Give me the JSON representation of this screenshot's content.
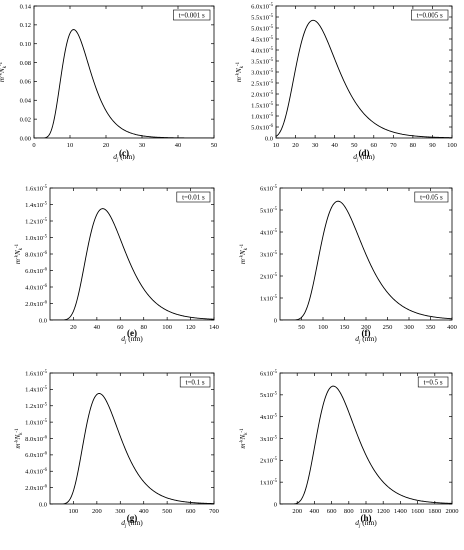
{
  "chart_data": [
    {
      "type": "line",
      "subfigure_label": "(c)",
      "legend": "t=0.001 s",
      "ylabel": "m^(-k)N_k^(-1)",
      "xlabel": "d_j (nm)",
      "xlim": [
        0,
        50
      ],
      "ylim": [
        0,
        0.14
      ],
      "xticks": [
        "0",
        "10",
        "20",
        "30",
        "40",
        "50"
      ],
      "yticks": [
        "0.00",
        "0.02",
        "0.04",
        "0.06",
        "0.08",
        "0.10",
        "0.12",
        "0.14"
      ],
      "peak": {
        "x": 11,
        "y": 0.115
      }
    },
    {
      "type": "line",
      "subfigure_label": "(d)",
      "legend": "t=0.005 s",
      "ylabel": "m^(-k)N_k^(-1)",
      "xlabel": "d_j (nm)",
      "xlim": [
        10,
        100
      ],
      "ylim": [
        0,
        6e-05
      ],
      "xticks": [
        "10",
        "20",
        "30",
        "40",
        "50",
        "60",
        "70",
        "80",
        "90",
        "100"
      ],
      "yticks": [
        "0.0",
        "5.0x10",
        "1.0x10",
        "1.5x10",
        "2.0x10",
        "2.5x10",
        "3.0x10",
        "3.5x10",
        "4.0x10",
        "4.5x10",
        "5.0x10",
        "5.5x10",
        "6.0x10"
      ],
      "ytick_exponents": [
        "",
        "-6",
        "-5",
        "-5",
        "-5",
        "-5",
        "-5",
        "-5",
        "-5",
        "-5",
        "-5",
        "-5",
        "-5"
      ],
      "peak": {
        "x": 29,
        "y": 5.35e-05
      }
    },
    {
      "type": "line",
      "subfigure_label": "(e)",
      "legend": "t=0.01 s",
      "ylabel": "m^(-k)N_k^(-1)",
      "xlabel": "d_j (nm)",
      "xlim": [
        0,
        140
      ],
      "ylim": [
        0,
        1.6e-05
      ],
      "xticks": [
        "20",
        "40",
        "60",
        "80",
        "100",
        "120",
        "140"
      ],
      "yticks": [
        "0.0",
        "2.0x10",
        "4.0x10",
        "6.0x10",
        "8.0x10",
        "1.0x10",
        "1.2x10",
        "1.4x10",
        "1.6x10"
      ],
      "ytick_exponents": [
        "",
        "-6",
        "-6",
        "-6",
        "-6",
        "-5",
        "-5",
        "-5",
        "-5"
      ],
      "peak": {
        "x": 45,
        "y": 1.35e-05
      }
    },
    {
      "type": "line",
      "subfigure_label": "(f)",
      "legend": "t=0.05 s",
      "ylabel": "m^(-k)N_k^(-1)",
      "xlabel": "d_j (nm)",
      "xlim": [
        0,
        400
      ],
      "ylim": [
        0,
        6e-05
      ],
      "xticks": [
        "50",
        "100",
        "150",
        "200",
        "250",
        "300",
        "350",
        "400"
      ],
      "yticks": [
        "0",
        "1x10",
        "2x10",
        "3x10",
        "4x10",
        "5x10",
        "6x10"
      ],
      "ytick_exponents": [
        "",
        "-5",
        "-5",
        "-5",
        "-5",
        "-5",
        "-5"
      ],
      "peak": {
        "x": 135,
        "y": 5.4e-05
      }
    },
    {
      "type": "line",
      "subfigure_label": "(g)",
      "legend": "t=0.1 s",
      "ylabel": "m^(-k)N_k^(-1)",
      "xlabel": "d_j (nm)",
      "xlim": [
        0,
        700
      ],
      "ylim": [
        0,
        1.6e-05
      ],
      "xticks": [
        "100",
        "200",
        "300",
        "400",
        "500",
        "600",
        "700"
      ],
      "yticks": [
        "0.0",
        "2.0x10",
        "4.0x10",
        "6.0x10",
        "8.0x10",
        "1.0x10",
        "1.2x10",
        "1.4x10",
        "1.6x10"
      ],
      "ytick_exponents": [
        "",
        "-6",
        "-6",
        "-6",
        "-6",
        "-5",
        "-5",
        "-5",
        "-5"
      ],
      "peak": {
        "x": 210,
        "y": 1.35e-05
      }
    },
    {
      "type": "line",
      "subfigure_label": "(h)",
      "legend": "t=0.5 s",
      "ylabel": "m^(-k)N_k^(-1)",
      "xlabel": "d_j (nm)",
      "xlim": [
        0,
        2000
      ],
      "ylim": [
        0,
        6e-05
      ],
      "xticks": [
        "200",
        "400",
        "600",
        "800",
        "1000",
        "1200",
        "1400",
        "1600",
        "1800",
        "2000"
      ],
      "yticks": [
        "0",
        "1x10",
        "2x10",
        "3x10",
        "4x10",
        "5x10",
        "6x10"
      ],
      "ytick_exponents": [
        "",
        "-5",
        "-5",
        "-5",
        "-5",
        "-5",
        "-5"
      ],
      "peak": {
        "x": 620,
        "y": 5.4e-05
      }
    }
  ]
}
